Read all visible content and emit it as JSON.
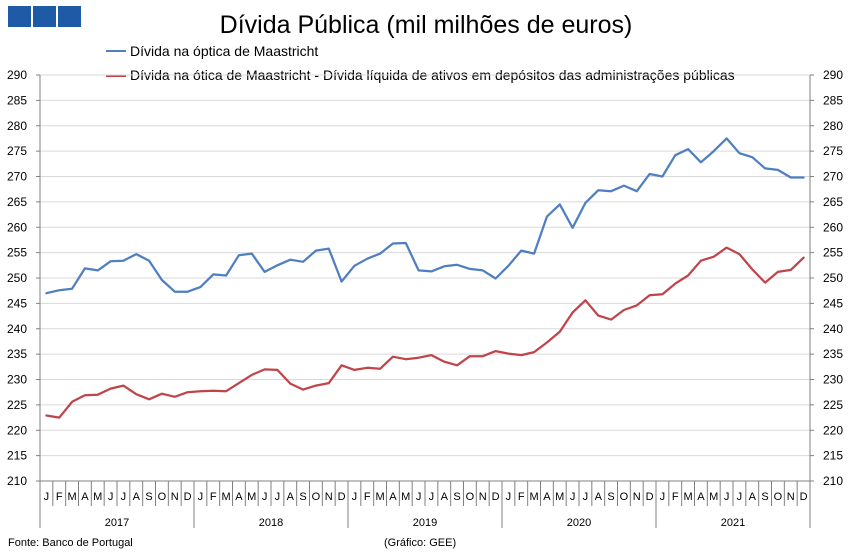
{
  "chart_data": {
    "type": "line",
    "title": "Dívida Pública (mil milhões de euros)",
    "ylim": [
      210,
      290
    ],
    "ytick_step": 5,
    "grid": true,
    "legend_position": "top",
    "month_labels": [
      "J",
      "F",
      "M",
      "A",
      "M",
      "J",
      "J",
      "A",
      "S",
      "O",
      "N",
      "D"
    ],
    "years": [
      "2017",
      "2018",
      "2019",
      "2020",
      "2021"
    ],
    "series": [
      {
        "name": "Dívida na óptica de Maastricht",
        "color": "#4f7fc0",
        "values": [
          247.0,
          247.6,
          247.9,
          251.9,
          251.5,
          253.3,
          253.4,
          254.7,
          253.4,
          249.6,
          247.3,
          247.3,
          248.2,
          250.7,
          250.5,
          254.5,
          254.8,
          251.2,
          252.5,
          253.6,
          253.2,
          255.4,
          255.8,
          249.3,
          252.4,
          253.8,
          254.8,
          256.8,
          256.9,
          251.5,
          251.3,
          252.3,
          252.6,
          251.8,
          251.5,
          249.9,
          252.4,
          255.4,
          254.8,
          262.1,
          264.5,
          259.9,
          264.8,
          267.3,
          267.1,
          268.2,
          267.1,
          270.5,
          270.0,
          274.2,
          275.4,
          272.8,
          275.0,
          277.5,
          274.6,
          273.8,
          271.6,
          271.3,
          269.8,
          269.8
        ]
      },
      {
        "name": "Dívida na ótica de Maastricht - Dívida líquida de ativos em depósitos das administrações públicas",
        "color": "#c0454a",
        "values": [
          222.9,
          222.5,
          225.6,
          226.9,
          227.0,
          228.2,
          228.8,
          227.1,
          226.1,
          227.2,
          226.6,
          227.5,
          227.7,
          227.8,
          227.7,
          229.3,
          230.9,
          232.0,
          231.9,
          229.2,
          228.0,
          228.8,
          229.3,
          232.8,
          231.9,
          232.3,
          232.1,
          234.5,
          234.0,
          234.3,
          234.8,
          233.5,
          232.8,
          234.6,
          234.6,
          235.6,
          235.1,
          234.8,
          235.4,
          237.3,
          239.4,
          243.2,
          245.6,
          242.6,
          241.8,
          243.7,
          244.6,
          246.6,
          246.8,
          248.9,
          250.5,
          253.4,
          254.2,
          256.0,
          254.7,
          251.7,
          249.1,
          251.2,
          251.6,
          254.0
        ]
      }
    ]
  },
  "footer": {
    "source": "Fonte: Banco de Portugal",
    "credit": "(Gráfico: GEE)"
  }
}
